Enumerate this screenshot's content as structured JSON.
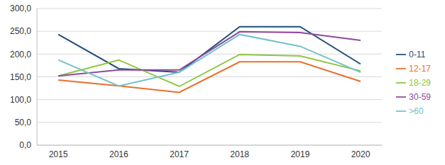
{
  "chart_data": {
    "type": "line",
    "categories": [
      "2015",
      "2016",
      "2017",
      "2018",
      "2019",
      "2020"
    ],
    "series": [
      {
        "name": "0-11",
        "color": "#1f4e79",
        "values": [
          243,
          168,
          160,
          260,
          260,
          178
        ]
      },
      {
        "name": "12-17",
        "color": "#e8702a",
        "values": [
          143,
          130,
          116,
          183,
          183,
          140
        ]
      },
      {
        "name": "18-29",
        "color": "#8dc63f",
        "values": [
          152,
          187,
          129,
          199,
          196,
          163
        ]
      },
      {
        "name": "30-59",
        "color": "#8e4a9e",
        "values": [
          152,
          165,
          165,
          249,
          247,
          230
        ]
      },
      {
        "name": ">60",
        "color": "#73c2c9",
        "values": [
          187,
          130,
          160,
          243,
          217,
          160
        ]
      }
    ],
    "ylim": [
      0,
      300
    ],
    "yticks": [
      {
        "value": 0,
        "label": "0,0"
      },
      {
        "value": 50,
        "label": "50,0"
      },
      {
        "value": 100,
        "label": "100,0"
      },
      {
        "value": 150,
        "label": "150,0"
      },
      {
        "value": 200,
        "label": "200,0"
      },
      {
        "value": 250,
        "label": "250,0"
      },
      {
        "value": 300,
        "label": "300,0"
      }
    ],
    "grid": true,
    "legend": "right"
  }
}
